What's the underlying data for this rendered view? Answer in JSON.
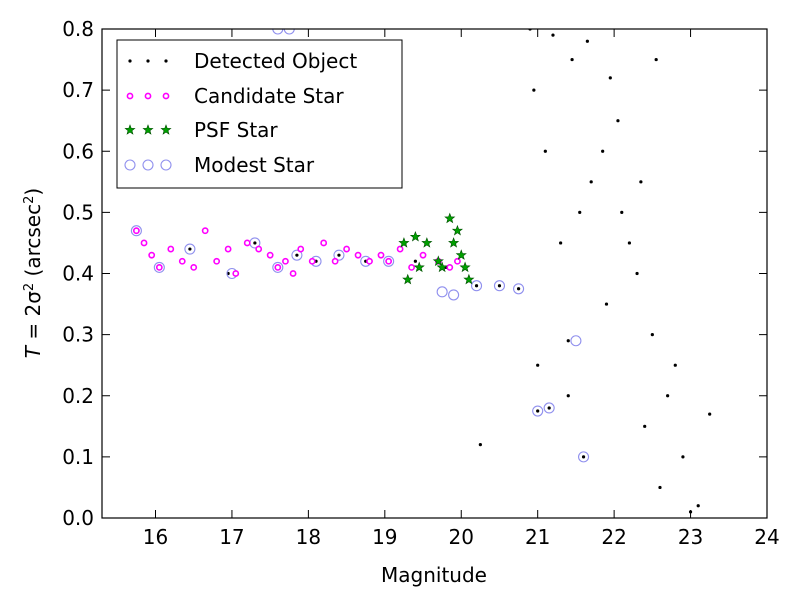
{
  "chart_data": {
    "type": "scatter",
    "title": "",
    "xlabel": "Magnitude",
    "ylabel": "T = 2σ² (arcsec²)",
    "ylabel_parts": {
      "lhs": "T",
      "eq": " = 2σ",
      "sq": "2",
      "unit_open": " (arcsec",
      "unit_sq": "2",
      "unit_close": ")"
    },
    "xlim": [
      15.3,
      24
    ],
    "ylim": [
      0,
      0.8
    ],
    "xticks": [
      "16",
      "17",
      "18",
      "19",
      "20",
      "21",
      "22",
      "23",
      "24"
    ],
    "yticks": [
      "0.0",
      "0.1",
      "0.2",
      "0.3",
      "0.4",
      "0.5",
      "0.6",
      "0.7",
      "0.8"
    ],
    "grid": false,
    "legend_position": "top-left",
    "series": [
      {
        "name": "Detected Object",
        "marker": "dot",
        "color": "#000000",
        "x": [
          15.75,
          16.05,
          16.45,
          16.95,
          17.3,
          17.6,
          17.85,
          18.1,
          18.4,
          18.75,
          19.05,
          19.4,
          19.8,
          20.2,
          20.5,
          20.75,
          21.0,
          21.15,
          21.4,
          21.6,
          20.25,
          21.0,
          21.4,
          21.3,
          21.55,
          21.7,
          21.1,
          20.95,
          21.45,
          21.85,
          22.1,
          22.3,
          22.5,
          22.7,
          22.9,
          23.1,
          23.25,
          22.6,
          22.4,
          22.8,
          23.0,
          22.2,
          21.9,
          22.05,
          22.35,
          22.55,
          21.95,
          21.65,
          21.2,
          20.9
        ],
        "y": [
          0.47,
          0.41,
          0.44,
          0.4,
          0.45,
          0.41,
          0.43,
          0.42,
          0.43,
          0.42,
          0.42,
          0.42,
          0.41,
          0.38,
          0.38,
          0.375,
          0.175,
          0.18,
          0.29,
          0.1,
          0.12,
          0.25,
          0.2,
          0.45,
          0.5,
          0.55,
          0.6,
          0.7,
          0.75,
          0.6,
          0.5,
          0.4,
          0.3,
          0.2,
          0.1,
          0.02,
          0.17,
          0.05,
          0.15,
          0.25,
          0.01,
          0.45,
          0.35,
          0.65,
          0.55,
          0.75,
          0.72,
          0.78,
          0.79,
          0.8
        ]
      },
      {
        "name": "Candidate Star",
        "marker": "circle",
        "color": "#ff00ff",
        "x": [
          15.75,
          15.85,
          15.95,
          16.05,
          16.2,
          16.35,
          16.5,
          16.65,
          16.8,
          16.95,
          17.05,
          17.2,
          17.35,
          17.5,
          17.6,
          17.7,
          17.8,
          17.9,
          18.05,
          18.2,
          18.35,
          18.5,
          18.65,
          18.8,
          18.95,
          19.05,
          19.2,
          19.35,
          19.5,
          19.7,
          19.85,
          19.95
        ],
        "y": [
          0.47,
          0.45,
          0.43,
          0.41,
          0.44,
          0.42,
          0.41,
          0.47,
          0.42,
          0.44,
          0.4,
          0.45,
          0.44,
          0.43,
          0.41,
          0.42,
          0.4,
          0.44,
          0.42,
          0.45,
          0.42,
          0.44,
          0.43,
          0.42,
          0.43,
          0.42,
          0.44,
          0.41,
          0.43,
          0.42,
          0.41,
          0.42
        ]
      },
      {
        "name": "PSF Star",
        "marker": "star",
        "color": "#00a000",
        "x": [
          19.25,
          19.3,
          19.4,
          19.45,
          19.55,
          19.7,
          19.75,
          19.85,
          19.9,
          19.95,
          20.0,
          20.05,
          20.1
        ],
        "y": [
          0.45,
          0.39,
          0.46,
          0.41,
          0.45,
          0.42,
          0.41,
          0.49,
          0.45,
          0.47,
          0.43,
          0.41,
          0.39
        ]
      },
      {
        "name": "Modest Star",
        "marker": "open-circle",
        "color": "#9090ee",
        "x": [
          15.75,
          16.05,
          16.45,
          17.0,
          17.3,
          17.6,
          17.85,
          18.1,
          18.4,
          18.75,
          19.05,
          19.75,
          19.9,
          20.2,
          20.5,
          20.75,
          21.0,
          21.15,
          21.5,
          21.6,
          17.6,
          17.75
        ],
        "y": [
          0.47,
          0.41,
          0.44,
          0.4,
          0.45,
          0.41,
          0.43,
          0.42,
          0.43,
          0.42,
          0.42,
          0.37,
          0.365,
          0.38,
          0.38,
          0.375,
          0.175,
          0.18,
          0.29,
          0.1,
          0.8,
          0.8
        ]
      }
    ]
  }
}
